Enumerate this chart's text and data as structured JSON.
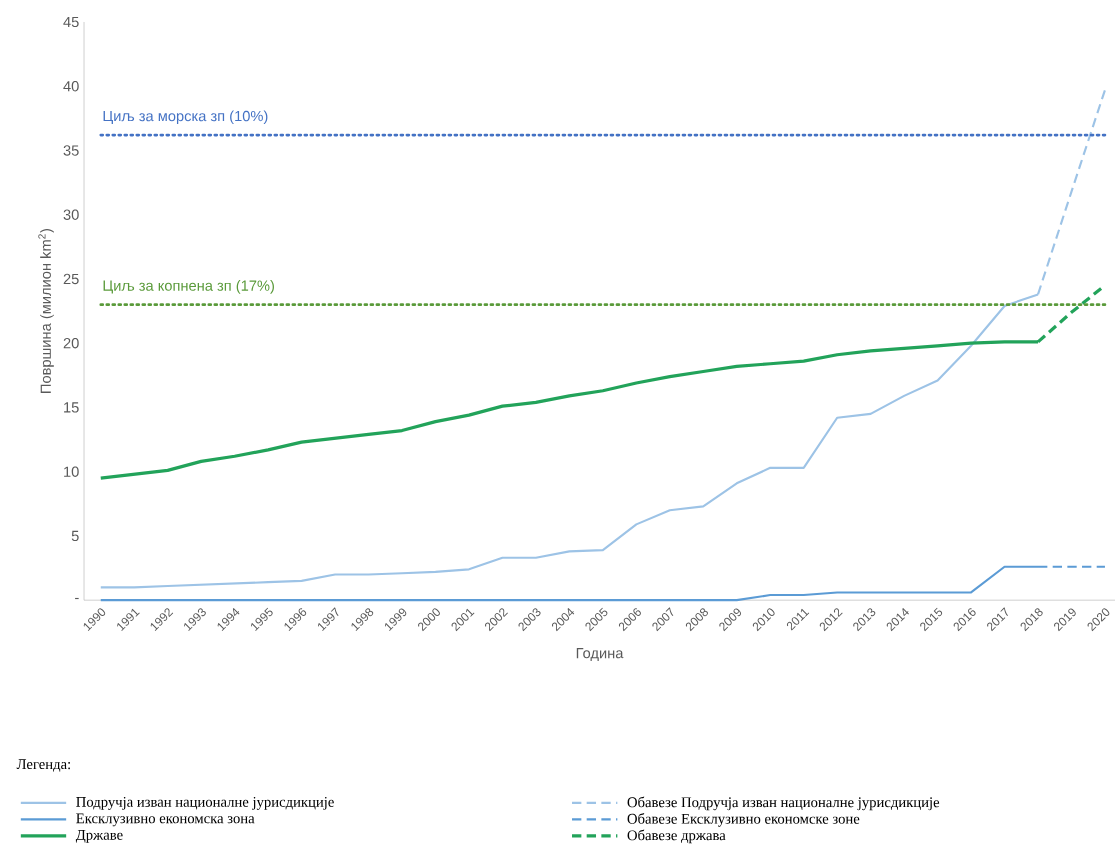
{
  "chart_data": {
    "type": "line",
    "xlabel": "Година",
    "ylabel": "Површина (милион km$^{2}$)",
    "legend_title": "Легенда:",
    "legend": "bottom",
    "marker": "none",
    "categories": [
      "1990",
      "1991",
      "1992",
      "1993",
      "1994",
      "1995",
      "1996",
      "1997",
      "1998",
      "1999",
      "2000",
      "2001",
      "2002",
      "2003",
      "2004",
      "2005",
      "2006",
      "2007",
      "2008",
      "2009",
      "2010",
      "2011",
      "2012",
      "2013",
      "2014",
      "2015",
      "2016",
      "2017",
      "2018",
      "2019",
      "2020"
    ],
    "ylim": [
      0,
      45
    ],
    "yticks": [
      {
        "value": 0,
        "label": "-"
      },
      5,
      10,
      15,
      20,
      25,
      30,
      35,
      40,
      45
    ],
    "series": [
      {
        "name": "Подручја изван националне јурисдикције",
        "color": "#9dc3e6",
        "line_style": "solid",
        "values": [
          1.0,
          1.0,
          1.1,
          1.2,
          1.3,
          1.4,
          1.5,
          2.0,
          2.0,
          2.1,
          2.2,
          2.4,
          3.3,
          3.3,
          3.8,
          3.9,
          5.9,
          7.0,
          7.3,
          9.1,
          10.3,
          10.3,
          14.2,
          14.5,
          15.9,
          17.1,
          19.8,
          22.9,
          23.8,
          null,
          null
        ]
      },
      {
        "name": "Ексклузивно економска зона",
        "color": "#5b9bd5",
        "line_style": "solid",
        "values": [
          0,
          0,
          0,
          0,
          0,
          0,
          0,
          0,
          0,
          0,
          0,
          0,
          0,
          0,
          0,
          0,
          0,
          0,
          0,
          0,
          0.4,
          0.4,
          0.6,
          0.6,
          0.6,
          0.6,
          0.6,
          2.6,
          2.6,
          null,
          null
        ]
      },
      {
        "name": "Државе",
        "color": "#22a35a",
        "line_style": "solid",
        "values": [
          9.5,
          9.8,
          10.1,
          10.8,
          11.2,
          11.7,
          12.3,
          12.6,
          12.9,
          13.2,
          13.9,
          14.4,
          15.1,
          15.4,
          15.9,
          16.3,
          16.9,
          17.4,
          17.8,
          18.2,
          18.4,
          18.6,
          19.1,
          19.4,
          19.6,
          19.8,
          20.0,
          20.1,
          20.1,
          null,
          null
        ]
      },
      {
        "name": "Обавезе Подручја изван националне јурисдикције",
        "color": "#9dc3e6",
        "line_style": "dashed",
        "values": [
          null,
          null,
          null,
          null,
          null,
          null,
          null,
          null,
          null,
          null,
          null,
          null,
          null,
          null,
          null,
          null,
          null,
          null,
          null,
          null,
          null,
          null,
          null,
          null,
          null,
          null,
          null,
          null,
          23.8,
          31.8,
          39.7
        ]
      },
      {
        "name": "Обавезе Ексклузивно економске зоне",
        "color": "#5b9bd5",
        "line_style": "dashed",
        "values": [
          null,
          null,
          null,
          null,
          null,
          null,
          null,
          null,
          null,
          null,
          null,
          null,
          null,
          null,
          null,
          null,
          null,
          null,
          null,
          null,
          null,
          null,
          null,
          null,
          null,
          null,
          null,
          null,
          2.6,
          2.6,
          2.6
        ]
      },
      {
        "name": "Обавезе држава",
        "color": "#22a35a",
        "line_style": "dashed",
        "values": [
          null,
          null,
          null,
          null,
          null,
          null,
          null,
          null,
          null,
          null,
          null,
          null,
          null,
          null,
          null,
          null,
          null,
          null,
          null,
          null,
          null,
          null,
          null,
          null,
          null,
          null,
          null,
          null,
          20.1,
          22.4,
          24.5
        ]
      }
    ],
    "ref_lines": [
      {
        "axis": "y",
        "value": 36.2,
        "label": "Циљ за морска зп (10%)",
        "color": "#4472c4",
        "line_style": "dotted"
      },
      {
        "axis": "y",
        "value": 23.0,
        "label": "Циљ за копнена зп (17%)",
        "color": "#5a9a3a",
        "line_style": "dotted"
      }
    ]
  }
}
